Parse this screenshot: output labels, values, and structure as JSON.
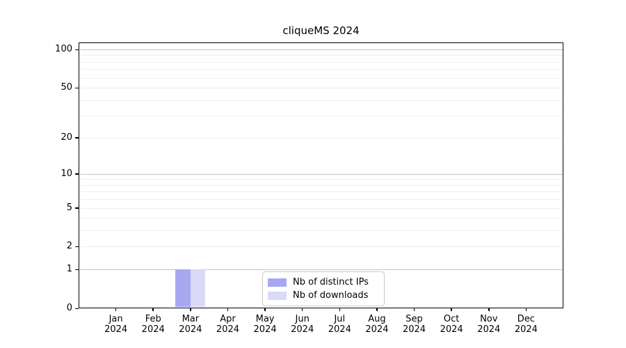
{
  "chart_data": {
    "type": "bar",
    "title": "cliqueMS 2024",
    "categories": [
      "Jan 2024",
      "Feb 2024",
      "Mar 2024",
      "Apr 2024",
      "May 2024",
      "Jun 2024",
      "Jul 2024",
      "Aug 2024",
      "Sep 2024",
      "Oct 2024",
      "Nov 2024",
      "Dec 2024"
    ],
    "series": [
      {
        "name": "Nb of distinct IPs",
        "color": "#a7a7f2",
        "values": [
          0,
          0,
          1,
          0,
          0,
          0,
          0,
          0,
          0,
          0,
          0,
          0
        ]
      },
      {
        "name": "Nb of downloads",
        "color": "#d9d9f8",
        "values": [
          0,
          0,
          1,
          0,
          0,
          0,
          0,
          0,
          0,
          0,
          0,
          0
        ]
      }
    ],
    "xlabel": "",
    "ylabel": "",
    "yscale": "log1p",
    "ylim": [
      0,
      113
    ],
    "y_ticks": [
      0,
      1,
      2,
      5,
      10,
      20,
      50,
      100
    ],
    "y_decade_ticks": [
      1,
      10,
      100
    ],
    "y_minor_ticks": [
      3,
      4,
      6,
      7,
      8,
      9,
      30,
      40,
      60,
      70,
      80,
      90
    ],
    "grid": true,
    "legend_position": "lower center",
    "colors": {
      "major_grid": "#c3c3c3",
      "minor_grid": "#ededed",
      "axis": "#000000",
      "background": "#ffffff"
    }
  }
}
